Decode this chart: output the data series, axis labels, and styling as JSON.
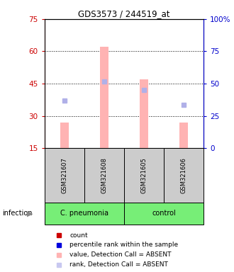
{
  "title": "GDS3573 / 244519_at",
  "samples": [
    "GSM321607",
    "GSM321608",
    "GSM321605",
    "GSM321606"
  ],
  "ylim_left": [
    15,
    75
  ],
  "ylim_right": [
    0,
    100
  ],
  "yticks_left": [
    15,
    30,
    45,
    60,
    75
  ],
  "yticks_right": [
    0,
    25,
    50,
    75,
    100
  ],
  "yticklabels_right": [
    "0",
    "25",
    "50",
    "75",
    "100%"
  ],
  "bar_values": [
    27,
    62,
    47,
    27
  ],
  "bar_color": "#ffb3b3",
  "rank_dots": [
    37,
    46,
    42,
    35
  ],
  "rank_dot_color_absent": "#b0b0e8",
  "left_color": "#cc0000",
  "right_color": "#0000cc",
  "sample_box_color": "#cccccc",
  "group1_label": "C. pneumonia",
  "group2_label": "control",
  "group_color": "#77ee77",
  "group_label": "infection",
  "legend_items": [
    {
      "color": "#cc0000",
      "label": "count"
    },
    {
      "color": "#0000dd",
      "label": "percentile rank within the sample"
    },
    {
      "color": "#ffb3b3",
      "label": "value, Detection Call = ABSENT"
    },
    {
      "color": "#c8c8f0",
      "label": "rank, Detection Call = ABSENT"
    }
  ]
}
